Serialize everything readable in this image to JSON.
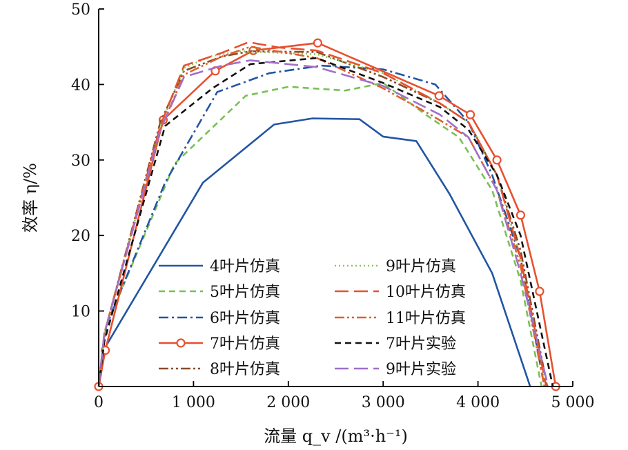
{
  "chart_data": {
    "type": "line",
    "xlabel": "流量 q_v /(m³·h⁻¹)",
    "ylabel": "效率 η/%",
    "xlim": [
      0,
      5000
    ],
    "ylim": [
      0,
      50
    ],
    "xticks": [
      0,
      1000,
      2000,
      3000,
      4000,
      5000
    ],
    "xtick_labels": [
      "0",
      "1 000",
      "2 000",
      "3 000",
      "4 000",
      "5 000"
    ],
    "yticks": [
      10,
      20,
      30,
      40,
      50
    ],
    "ytick_labels": [
      "10",
      "20",
      "30",
      "40",
      "50"
    ],
    "grid": false,
    "legend_position": "bottom-center",
    "series": [
      {
        "name": "4叶片仿真",
        "color": "#2255a4",
        "dash": "solid",
        "marker": "none",
        "x": [
          0,
          60,
          1100,
          1850,
          2250,
          2750,
          3000,
          3350,
          3700,
          4150,
          4550
        ],
        "y": [
          0,
          5,
          27,
          34.7,
          35.5,
          35.4,
          33.1,
          32.5,
          25.5,
          15,
          0
        ]
      },
      {
        "name": "5叶片仿真",
        "color": "#77c152",
        "dash": "dash",
        "marker": "none",
        "x": [
          0,
          80,
          800,
          1550,
          2000,
          2600,
          3000,
          3450,
          3800,
          4150,
          4450,
          4670
        ],
        "y": [
          0,
          8,
          29.5,
          38.5,
          39.7,
          39.2,
          40.2,
          36,
          33,
          26,
          14,
          0
        ]
      },
      {
        "name": "6叶片仿真",
        "color": "#2255a4",
        "dash": "dashdot",
        "marker": "none",
        "x": [
          0,
          80,
          700,
          1250,
          1800,
          2350,
          3000,
          3550,
          3900,
          4150,
          4450,
          4700
        ],
        "y": [
          0,
          8,
          27,
          39,
          41.5,
          42.5,
          42,
          40,
          35,
          28,
          17,
          0
        ]
      },
      {
        "name": "7叶片仿真",
        "color": "#e8502e",
        "dash": "solid",
        "marker": "circle",
        "x": [
          0,
          70,
          680,
          1230,
          1630,
          2310,
          3590,
          3920,
          4200,
          4450,
          4650,
          4820
        ],
        "y": [
          0,
          4.8,
          35.3,
          41.8,
          44.5,
          45.5,
          38.5,
          36,
          30,
          22.7,
          12.6,
          0
        ]
      },
      {
        "name": "8叶片仿真",
        "color": "#8a4b2a",
        "dash": "dashdotdot",
        "marker": "none",
        "x": [
          0,
          60,
          650,
          900,
          1300,
          1600,
          2300,
          3000,
          3600,
          3900,
          4200,
          4450,
          4730
        ],
        "y": [
          0,
          7,
          35,
          41.8,
          43.7,
          44.4,
          44.3,
          41,
          37.5,
          35,
          28,
          18,
          0
        ]
      },
      {
        "name": "9叶片仿真",
        "color": "#8fc25c",
        "dash": "dot",
        "marker": "none",
        "x": [
          0,
          60,
          650,
          900,
          1200,
          1500,
          2300,
          3000,
          3600,
          3900,
          4200,
          4450,
          4720
        ],
        "y": [
          0,
          7,
          34.5,
          42.2,
          43.8,
          44.4,
          44,
          41.5,
          37.5,
          35,
          28,
          17,
          0
        ]
      },
      {
        "name": "10叶片仿真",
        "color": "#e8502e",
        "dash": "longdash",
        "marker": "none",
        "x": [
          0,
          60,
          650,
          900,
          1300,
          1580,
          1900,
          2300,
          3000,
          3600,
          3900,
          4200,
          4450,
          4720
        ],
        "y": [
          0,
          7,
          34.5,
          42.5,
          44.2,
          45.6,
          44.9,
          44.5,
          41.5,
          37.5,
          35,
          28,
          17,
          0
        ]
      },
      {
        "name": "11叶片仿真",
        "color": "#e0612f",
        "dash": "dashdotdot",
        "marker": "none",
        "x": [
          0,
          60,
          650,
          900,
          1300,
          1600,
          2300,
          3000,
          3500,
          3900,
          4200,
          4450,
          4700
        ],
        "y": [
          0,
          7,
          34,
          41.3,
          43.7,
          45,
          43.5,
          39.5,
          36,
          33,
          26,
          16,
          0
        ]
      },
      {
        "name": "7叶片实验",
        "color": "#111111",
        "dash": "dash",
        "marker": "none",
        "x": [
          0,
          60,
          700,
          1200,
          1600,
          2300,
          3000,
          3600,
          3900,
          4200,
          4450,
          4790
        ],
        "y": [
          0,
          6,
          34.5,
          39.5,
          42.7,
          43.5,
          40.2,
          37,
          34,
          28,
          20,
          0
        ]
      },
      {
        "name": "9叶片实验",
        "color": "#a070c8",
        "dash": "longdash",
        "marker": "none",
        "x": [
          0,
          60,
          650,
          900,
          1300,
          1600,
          2300,
          3000,
          3600,
          3900,
          4200,
          4450,
          4740
        ],
        "y": [
          0,
          7,
          34,
          41,
          42.5,
          43.2,
          42.3,
          39.8,
          36,
          33,
          26,
          15,
          0
        ]
      }
    ]
  }
}
